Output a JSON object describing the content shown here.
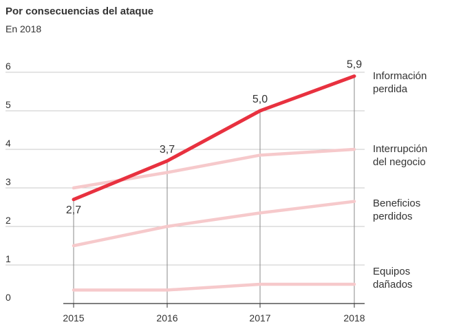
{
  "chart_data": {
    "type": "line",
    "title": "Por consecuencias del ataque",
    "subtitle": "En 2018",
    "x": [
      "2015",
      "2016",
      "2017",
      "2018"
    ],
    "ylim": [
      0,
      6
    ],
    "yticks": [
      "0",
      "1",
      "2",
      "3",
      "4",
      "5",
      "6"
    ],
    "grid": true,
    "series": [
      {
        "name": "Información perdida",
        "name_lines": [
          "Información",
          "perdida"
        ],
        "values": [
          2.7,
          3.7,
          5.0,
          5.9
        ],
        "data_labels": [
          "2,7",
          "3,7",
          "5,0",
          "5,9"
        ],
        "color": "#e8313f",
        "highlight": true
      },
      {
        "name": "Interrupción del negocio",
        "name_lines": [
          "Interrupción",
          "del negocio"
        ],
        "values": [
          3.0,
          3.4,
          3.85,
          4.0
        ],
        "color": "#f6c9cb",
        "highlight": false
      },
      {
        "name": "Beneficios perdidos",
        "name_lines": [
          "Beneficios",
          "perdidos"
        ],
        "values": [
          1.5,
          2.0,
          2.35,
          2.65
        ],
        "color": "#f6c9cb",
        "highlight": false
      },
      {
        "name": "Equipos dañados",
        "name_lines": [
          "Equipos",
          "dañados"
        ],
        "values": [
          0.35,
          0.35,
          0.5,
          0.5
        ],
        "color": "#f6c9cb",
        "highlight": false
      }
    ]
  }
}
